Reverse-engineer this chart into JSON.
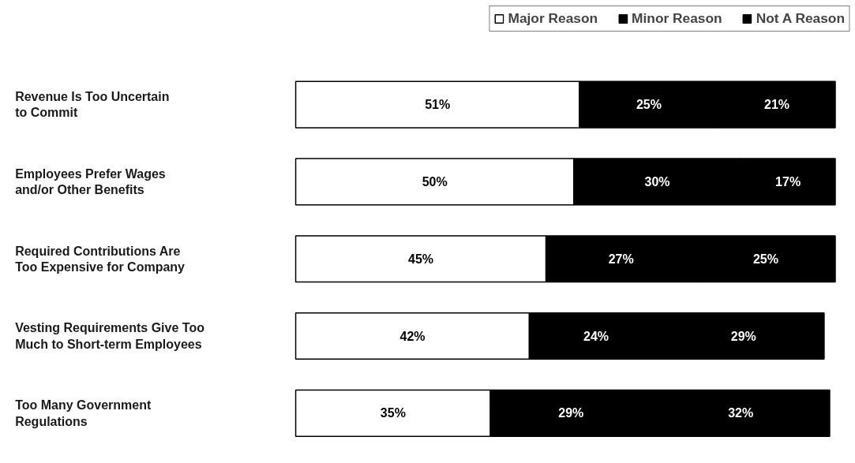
{
  "chart_data": {
    "type": "bar",
    "orientation": "horizontal",
    "stacked": true,
    "legend": "top right",
    "grid": false,
    "tick_labels": false,
    "categories": [
      "Revenue Is Too Uncertain\nto Commit",
      "Employees Prefer Wages\nand/or Other Benefits",
      "Required Contributions Are\nToo Expensive for Company",
      "Vesting Requirements Give Too\nMuch to Short-term Employees",
      "Too Many Government\nRegulations"
    ],
    "series": [
      {
        "name": "Major Reason",
        "color": "#ffffff",
        "values": [
          51,
          50,
          45,
          42,
          35
        ],
        "value_labels": [
          "51%",
          "50%",
          "45%",
          "42%",
          "35%"
        ]
      },
      {
        "name": "Minor Reason",
        "color": "#000000",
        "values": [
          25,
          30,
          27,
          24,
          29
        ],
        "value_labels": [
          "25%",
          "30%",
          "27%",
          "24%",
          "29%"
        ]
      },
      {
        "name": "Not A Reason",
        "color": "#000000",
        "values": [
          21,
          17,
          25,
          29,
          32
        ],
        "value_labels": [
          "21%",
          "17%",
          "25%",
          "29%",
          "32%"
        ]
      }
    ]
  }
}
